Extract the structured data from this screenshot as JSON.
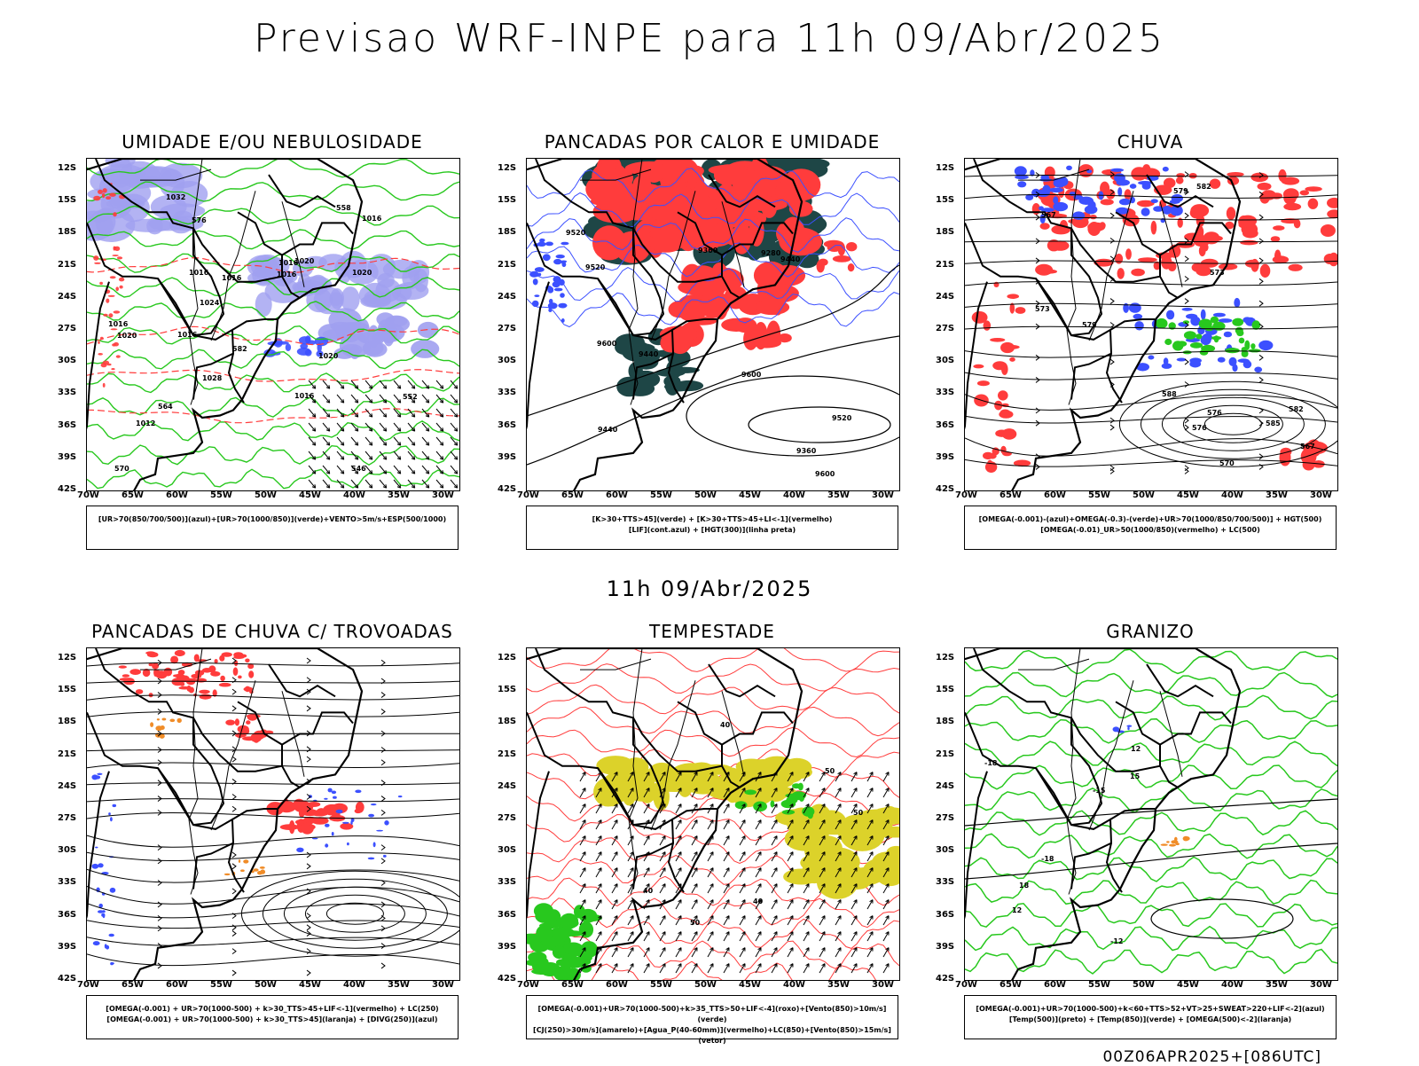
{
  "title": "Previsao WRF-INPE  para 11h 09/Abr/2025",
  "subtitle": "11h 09/Abr/2025",
  "footer": "00Z06APR2025+[086UTC]",
  "lat_labels": [
    "12S",
    "15S",
    "18S",
    "21S",
    "24S",
    "27S",
    "30S",
    "33S",
    "36S",
    "39S",
    "42S"
  ],
  "lon_labels": [
    "70W",
    "65W",
    "60W",
    "55W",
    "50W",
    "45W",
    "40W",
    "35W",
    "30W"
  ],
  "colors": {
    "blue": "#3c50ff",
    "red": "#ff3c3c",
    "green": "#28c81e",
    "darkgreen": "#1e4646",
    "yellow": "#dcd22a",
    "lavender": "#a0a0f0",
    "orange": "#f08c28"
  },
  "panels": [
    {
      "title": "UMIDADE E/OU NEBULOSIDADE",
      "legend": [
        "[UR>70(850/700/500)](azul)+[UR>70(1000/850)](verde)+VENTO>5m/s+ESP(500/1000)"
      ],
      "contour_labels": [
        "1016",
        "1016",
        "1020",
        "1016",
        "1012",
        "1016",
        "1016",
        "1020",
        "1024",
        "1028",
        "1032",
        "1016",
        "1016",
        "1016",
        "1020",
        "1020",
        "570",
        "564",
        "558",
        "552",
        "546",
        "582",
        "576"
      ]
    },
    {
      "title": "PANCADAS POR CALOR E UMIDADE",
      "legend": [
        "[K>30+TTS>45](verde) + [K>30+TTS>45+LI<-1](vermelho)",
        "[LIF](cont.azul) + [HGT(300)](linha preta)"
      ],
      "contour_labels": [
        "9600",
        "9600",
        "9600",
        "9520",
        "9520",
        "9520",
        "9440",
        "9440",
        "9440",
        "9360",
        "9280",
        "9360"
      ]
    },
    {
      "title": "CHUVA",
      "legend": [
        "[OMEGA(-0.001)-(azul)+OMEGA(-0.3)-(verde)+UR>70(1000/850/700/500)] + HGT(500)",
        "[OMEGA(-0.01)_UR>50(1000/850)(vermelho) + LC(500)"
      ],
      "contour_labels": [
        "585",
        "582",
        "588",
        "579",
        "576",
        "573",
        "570",
        "567",
        "567",
        "576",
        "573",
        "579",
        "582"
      ]
    },
    {
      "title": "PANCADAS DE CHUVA C/ TROVOADAS",
      "legend": [
        "[OMEGA(-0.001) + UR>70(1000-500) + k>30_TTS>45+LIF<-1](vermelho) + LC(250)",
        "[OMEGA(-0.001) + UR>70(1000-500) + k>30_TTS>45](laranja) + [DIVG(250)](azul)"
      ],
      "contour_labels": []
    },
    {
      "title": "TEMPESTADE",
      "legend": [
        "[OMEGA(-0.001)+UR>70(1000-500)+k>35_TTS>50+LIF<-4](roxo)+[Vento(850)>10m/s](verde)",
        "[CJ(250)>30m/s](amarelo)+[Agua_P(40-60mm)](vermelho)+LC(850)+[Vento(850)>15m/s](vetor)"
      ],
      "contour_labels": [
        "50",
        "40",
        "50",
        "40",
        "40",
        "50"
      ]
    },
    {
      "title": "GRANIZO",
      "legend": [
        "[OMEGA(-0.001)+UR>70(1000-500)+k<60+TTS>52+VT>25+SWEAT>220+LIF<-2](azul)",
        "[Temp(500)](preto) + [Temp(850)](verde) + [OMEGA(500)<-2](laranja)"
      ],
      "contour_labels": [
        "-18",
        "-15",
        "-12",
        "-18",
        "18",
        "15",
        "12",
        "12"
      ]
    }
  ]
}
